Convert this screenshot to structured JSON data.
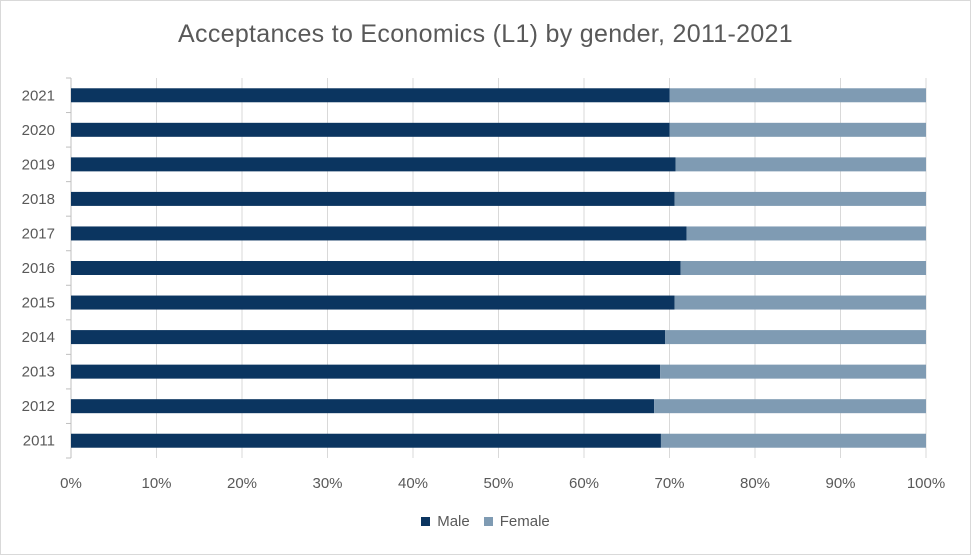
{
  "chart_data": {
    "type": "bar",
    "orientation": "horizontal",
    "stacked": "percent",
    "title": "Acceptances to Economics (L1) by gender, 2011-2021",
    "categories": [
      "2021",
      "2020",
      "2019",
      "2018",
      "2017",
      "2016",
      "2015",
      "2014",
      "2013",
      "2012",
      "2011"
    ],
    "series": [
      {
        "name": "Male",
        "color": "#0b3560",
        "values": [
          70.0,
          70.0,
          70.7,
          70.6,
          72.0,
          71.3,
          70.6,
          69.5,
          68.9,
          68.2,
          69.0
        ]
      },
      {
        "name": "Female",
        "color": "#7f9bb3",
        "values": [
          30.0,
          30.0,
          29.3,
          29.4,
          28.0,
          28.7,
          29.4,
          30.5,
          31.1,
          31.8,
          31.0
        ]
      }
    ],
    "xlim": [
      0,
      100
    ],
    "x_ticks": [
      "0%",
      "10%",
      "20%",
      "30%",
      "40%",
      "50%",
      "60%",
      "70%",
      "80%",
      "90%",
      "100%"
    ],
    "grid": "vertical",
    "legend_position": "bottom"
  }
}
